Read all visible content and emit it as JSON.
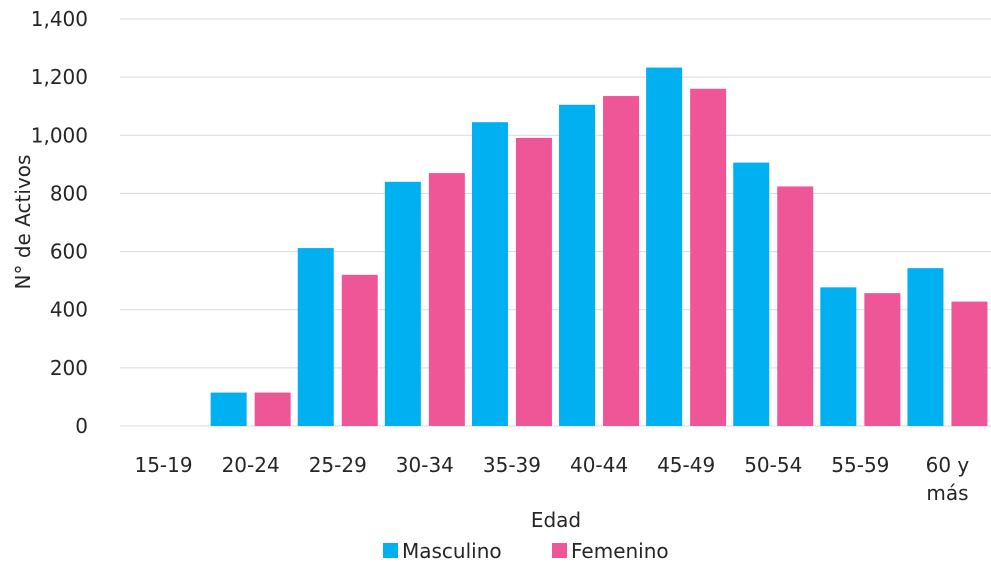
{
  "chart_data": {
    "type": "bar",
    "categories": [
      "15-19",
      "20-24",
      "25-29",
      "30-34",
      "35-39",
      "40-44",
      "45-49",
      "50-54",
      "55-59",
      "60 y\nmás"
    ],
    "series": [
      {
        "name": "Masculino",
        "color": "#00b0f0",
        "values": [
          0,
          115,
          612,
          840,
          1045,
          1105,
          1233,
          906,
          477,
          543
        ]
      },
      {
        "name": "Femenino",
        "color": "#ef5697",
        "values": [
          0,
          115,
          520,
          870,
          991,
          1135,
          1160,
          824,
          457,
          428
        ]
      }
    ],
    "xlabel": "Edad",
    "ylabel": "N° de Activos",
    "ylim": [
      0,
      1400
    ],
    "yticks": [
      0,
      200,
      400,
      600,
      800,
      1000,
      1200,
      1400
    ],
    "ytick_labels": [
      "0",
      "200",
      "400",
      "600",
      "800",
      "1,000",
      "1,200",
      "1,400"
    ],
    "grid": true,
    "legend_position": "bottom"
  }
}
